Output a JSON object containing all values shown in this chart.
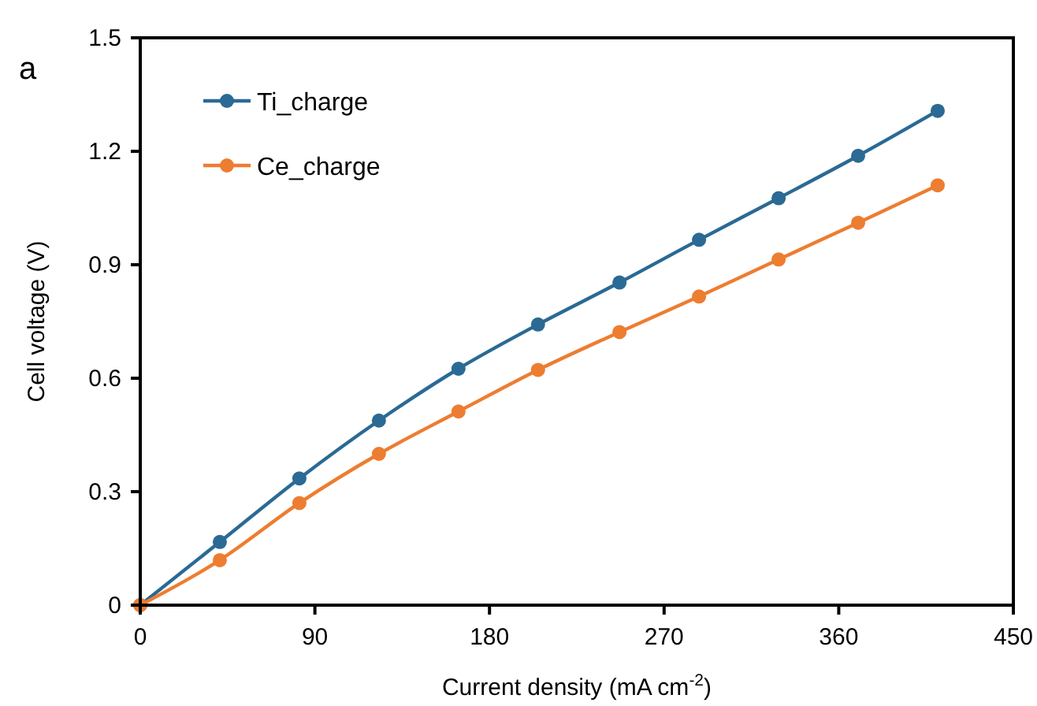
{
  "chart_data": {
    "type": "line",
    "xlabel": "Current density (mA cm$^{-2}$)",
    "ylabel": "Cell voltage (V)",
    "annotations": [
      "a"
    ],
    "x": [
      0,
      41,
      82,
      123,
      164,
      205,
      247,
      288,
      329,
      370,
      411
    ],
    "series": [
      {
        "name": "Ti_charge",
        "color": "#2a6a94",
        "values": [
          0,
          0.167,
          0.335,
          0.488,
          0.625,
          0.742,
          0.853,
          0.966,
          1.076,
          1.188,
          1.307
        ]
      },
      {
        "name": "Ce_charge",
        "color": "#ed7d31",
        "values": [
          0,
          0.119,
          0.27,
          0.4,
          0.512,
          0.622,
          0.722,
          0.816,
          0.914,
          1.011,
          1.11
        ]
      }
    ],
    "xlim": [
      0,
      450
    ],
    "xticks": [
      0,
      90,
      180,
      270,
      360,
      450
    ],
    "ylim": [
      0,
      1.5
    ],
    "yticks": [
      0,
      0.3,
      0.6,
      0.9,
      1.2,
      1.5
    ],
    "grid": false,
    "legend": "top left",
    "marker": "circle",
    "line_style": "solid"
  }
}
